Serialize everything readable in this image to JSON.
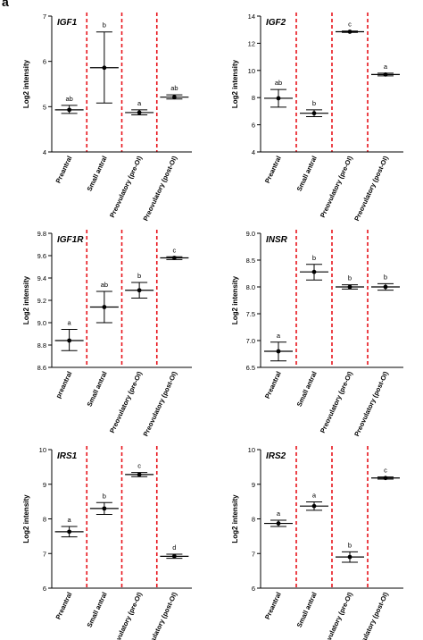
{
  "panel_letter": "a",
  "colors": {
    "axis": "#000000",
    "separator": "#e8141c",
    "mark": "#000000"
  },
  "chart_data": [
    {
      "type": "scatter",
      "title": "IGF1",
      "ylabel": "Log2 intensity",
      "ylim": [
        4,
        7
      ],
      "yticks": [
        "4",
        "5",
        "6",
        "7"
      ],
      "categories": [
        "Preantral",
        "Small antral",
        "Preovulatory (pre-OI)",
        "Preovulatory (post-OI)"
      ],
      "mean": [
        4.93,
        5.86,
        4.87,
        5.21
      ],
      "lower": [
        4.85,
        5.08,
        4.82,
        5.17
      ],
      "upper": [
        5.03,
        6.65,
        4.93,
        5.26
      ],
      "letters": [
        "ab",
        "b",
        "a",
        "ab"
      ]
    },
    {
      "type": "scatter",
      "title": "IGF2",
      "ylabel": "Log2 intensity",
      "ylim": [
        4,
        14
      ],
      "yticks": [
        "4",
        "6",
        "8",
        "10",
        "12",
        "14"
      ],
      "categories": [
        "Preantral",
        "Small antral",
        "Preovulatory (pre-OI)",
        "Preovulatory (post-OI)"
      ],
      "mean": [
        7.95,
        6.85,
        12.85,
        9.7
      ],
      "lower": [
        7.3,
        6.6,
        12.8,
        9.6
      ],
      "upper": [
        8.6,
        7.1,
        12.9,
        9.8
      ],
      "letters": [
        "ab",
        "b",
        "c",
        "a"
      ]
    },
    {
      "type": "scatter",
      "title": "IGF1R",
      "ylabel": "Log2 intensity",
      "ylim": [
        8.6,
        9.8
      ],
      "yticks": [
        "8.6",
        "8.8",
        "9.0",
        "9.2",
        "9.4",
        "9.6",
        "9.8"
      ],
      "categories": [
        "preantral",
        "Small antral",
        "Preovulatory (pre-OI)",
        "Preovulatory (post-OI)"
      ],
      "mean": [
        8.84,
        9.14,
        9.29,
        9.58
      ],
      "lower": [
        8.75,
        9.0,
        9.22,
        9.565
      ],
      "upper": [
        8.94,
        9.28,
        9.36,
        9.59
      ],
      "letters": [
        "a",
        "ab",
        "b",
        "c"
      ]
    },
    {
      "type": "scatter",
      "title": "INSR",
      "ylabel": "Log2 intensity",
      "ylim": [
        6.5,
        9.0
      ],
      "yticks": [
        "6.5",
        "7.0",
        "7.5",
        "8.0",
        "8.5",
        "9.0"
      ],
      "categories": [
        "Preantral",
        "Small antral",
        "Preovulatory (pre-OI)",
        "Preovulatory (post-OI)"
      ],
      "mean": [
        6.8,
        8.28,
        8.0,
        8.0
      ],
      "lower": [
        6.62,
        8.13,
        7.96,
        7.94
      ],
      "upper": [
        6.97,
        8.42,
        8.04,
        8.06
      ],
      "letters": [
        "a",
        "b",
        "b",
        "b"
      ]
    },
    {
      "type": "scatter",
      "title": "IRS1",
      "ylabel": "Log2 intensity",
      "ylim": [
        6,
        10
      ],
      "yticks": [
        "6",
        "7",
        "8",
        "9",
        "10"
      ],
      "categories": [
        "Preantral",
        "Small antral",
        "Preovulatory (pre-OI)",
        "Preovulatory (post-OI)"
      ],
      "mean": [
        7.63,
        8.3,
        9.28,
        6.92
      ],
      "lower": [
        7.48,
        8.13,
        9.22,
        6.86
      ],
      "upper": [
        7.78,
        8.47,
        9.34,
        6.98
      ],
      "letters": [
        "a",
        "b",
        "c",
        "d"
      ]
    },
    {
      "type": "scatter",
      "title": "IRS2",
      "ylabel": "Log2 intensity",
      "ylim": [
        6,
        10
      ],
      "yticks": [
        "6",
        "7",
        "8",
        "9",
        "10"
      ],
      "categories": [
        "Preantral",
        "Small antral",
        "Preovulatory (pre-OI)",
        "Preovulatory (post-OI)"
      ],
      "mean": [
        7.87,
        8.37,
        6.9,
        9.18
      ],
      "lower": [
        7.78,
        8.25,
        6.75,
        9.15
      ],
      "upper": [
        7.96,
        8.49,
        7.05,
        9.21
      ],
      "letters": [
        "a",
        "a",
        "b",
        "c"
      ]
    }
  ]
}
